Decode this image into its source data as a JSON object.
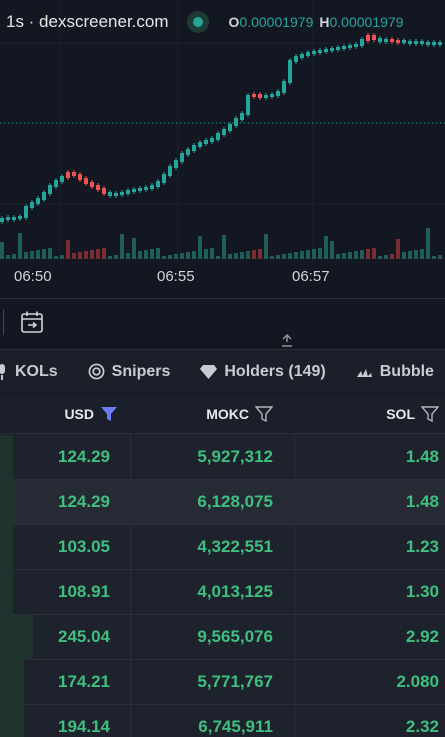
{
  "chart": {
    "symbol": "1s · dexscreener.com",
    "open_label": "O",
    "open_value": "0.00001979",
    "high_label": "H",
    "high_value": "0.00001979",
    "time_labels": [
      "06:50",
      "06:55",
      "06:57"
    ],
    "colors": {
      "up": "#26a69a",
      "down": "#ef5350",
      "price_line": "#26a69a"
    }
  },
  "toolbar": {
    "calendar_icon": "calendar-range-icon",
    "resize_icon": "resize-vertical-icon"
  },
  "tabs": [
    {
      "label": "KOLs",
      "icon": "microphone-icon"
    },
    {
      "label": "Snipers",
      "icon": "target-icon"
    },
    {
      "label": "Holders (149)",
      "icon": "diamond-icon"
    },
    {
      "label": "Bubble",
      "icon": "bubble-chart-icon"
    }
  ],
  "table": {
    "columns": [
      {
        "label": "USD",
        "filter_active": true
      },
      {
        "label": "MOKC",
        "filter_active": false
      },
      {
        "label": "SOL",
        "filter_active": false
      }
    ],
    "rows": [
      {
        "usd": "124.29",
        "token": "5,927,312",
        "sol": "1.48",
        "level": 0.03
      },
      {
        "usd": "124.29",
        "token": "6,128,075",
        "sol": "1.48",
        "level": 0.035
      },
      {
        "usd": "103.05",
        "token": "4,322,551",
        "sol": "1.23",
        "level": 0.03
      },
      {
        "usd": "108.91",
        "token": "4,013,125",
        "sol": "1.30",
        "level": 0.03
      },
      {
        "usd": "245.04",
        "token": "9,565,076",
        "sol": "2.92",
        "level": 0.075
      },
      {
        "usd": "174.21",
        "token": "5,771,767",
        "sol": "2.080",
        "level": 0.055
      },
      {
        "usd": "194.14",
        "token": "6,745,911",
        "sol": "2.32",
        "level": 0.055
      }
    ]
  }
}
